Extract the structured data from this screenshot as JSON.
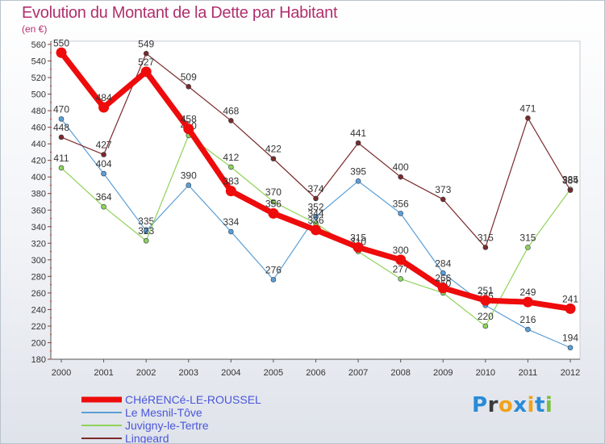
{
  "title": "Evolution du Montant de la Dette par Habitant",
  "unit": "(en €)",
  "logo": {
    "text": "Proxiti",
    "letters": [
      "P",
      "r",
      "o",
      "x",
      "i",
      "t",
      "i"
    ],
    "colors": [
      "#2a8bd8",
      "#3a3a3a",
      "#f2a21c",
      "#2a8bd8",
      "#f2a21c",
      "#2a8bd8",
      "#7bbf3b"
    ]
  },
  "chart_data": {
    "type": "line",
    "title": "Evolution du Montant de la Dette par Habitant",
    "subtitle": "(en €)",
    "xlabel": "",
    "ylabel": "",
    "x": [
      "2000",
      "2001",
      "2002",
      "2003",
      "2004",
      "2005",
      "2006",
      "2007",
      "2008",
      "2009",
      "2010",
      "2011",
      "2012"
    ],
    "ylim": [
      180,
      560
    ],
    "yticks": [
      180,
      200,
      220,
      240,
      260,
      280,
      300,
      320,
      340,
      360,
      380,
      400,
      420,
      440,
      460,
      480,
      500,
      520,
      540,
      560
    ],
    "grid": false,
    "legend": "bottom-left",
    "series": [
      {
        "name": "CHéRENCé-LE-ROUSSEL",
        "color": "#ee0b0b",
        "width": 7,
        "values": [
          550,
          484,
          527,
          458,
          383,
          356,
          336,
          315,
          300,
          266,
          251,
          249,
          241
        ]
      },
      {
        "name": "Le Mesnil-Tôve",
        "color": "#5b9fd6",
        "width": 1.2,
        "values": [
          470,
          404,
          335,
          390,
          334,
          276,
          352,
          395,
          356,
          284,
          245,
          216,
          194
        ]
      },
      {
        "name": "Juvigny-le-Tertre",
        "color": "#8fd35a",
        "width": 1.2,
        "values": [
          411,
          364,
          323,
          450,
          412,
          370,
          344,
          310,
          277,
          260,
          220,
          315,
          385
        ]
      },
      {
        "name": "Lingeard",
        "color": "#7a2a2a",
        "width": 1.2,
        "values": [
          448,
          427,
          549,
          509,
          468,
          422,
          374,
          441,
          400,
          373,
          315,
          471,
          384
        ]
      }
    ]
  }
}
